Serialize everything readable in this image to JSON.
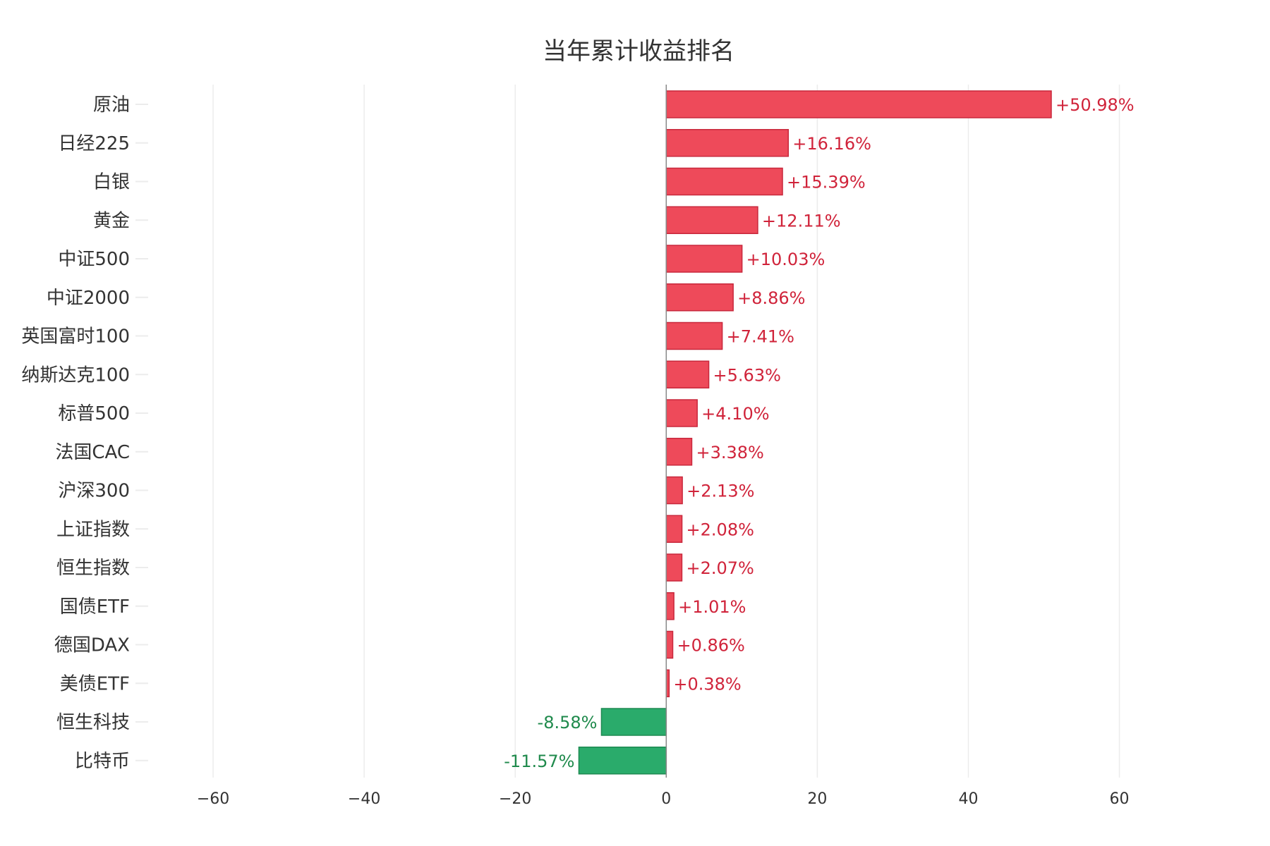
{
  "chart_data": {
    "type": "bar",
    "orientation": "horizontal",
    "title": "当年累计收益排名",
    "xlabel": "",
    "ylabel": "",
    "xlim": [
      -70,
      72
    ],
    "xticks": [
      -60,
      -40,
      -20,
      0,
      20,
      40,
      60
    ],
    "xtick_labels": [
      "−60",
      "−40",
      "−20",
      "0",
      "20",
      "40",
      "60"
    ],
    "grid": true,
    "categories": [
      "原油",
      "日经225",
      "白银",
      "黄金",
      "中证500",
      "中证2000",
      "英国富时100",
      "纳斯达克100",
      "标普500",
      "法国CAC",
      "沪深300",
      "上证指数",
      "恒生指数",
      "国债ETF",
      "德国DAX",
      "美债ETF",
      "恒生科技",
      "比特币"
    ],
    "values": [
      50.98,
      16.16,
      15.39,
      12.11,
      10.03,
      8.86,
      7.41,
      5.63,
      4.1,
      3.38,
      2.13,
      2.08,
      2.07,
      1.01,
      0.86,
      0.38,
      -8.58,
      -11.57
    ],
    "value_labels": [
      "+50.98%",
      "+16.16%",
      "+15.39%",
      "+12.11%",
      "+10.03%",
      "+8.86%",
      "+7.41%",
      "+5.63%",
      "+4.10%",
      "+3.38%",
      "+2.13%",
      "+2.08%",
      "+2.07%",
      "+1.01%",
      "+0.86%",
      "+0.38%",
      "-8.58%",
      "-11.57%"
    ],
    "colors": {
      "positive_fill": "#ee4a5a",
      "positive_stroke": "#c8283c",
      "positive_text": "#d0233a",
      "negative_fill": "#2aab6b",
      "negative_stroke": "#1f8a52",
      "negative_text": "#1f8a4c",
      "grid": "#ececec",
      "axis": "#888888"
    }
  }
}
